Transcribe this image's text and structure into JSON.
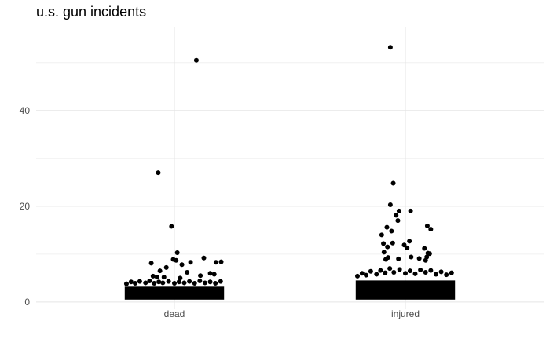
{
  "chart_data": {
    "type": "scatter",
    "title": "u.s. gun incidents",
    "xlabel": "",
    "ylabel": "",
    "categories": [
      "dead",
      "injured"
    ],
    "ylim": [
      -1.5,
      57.5
    ],
    "y_ticks": [
      0,
      20,
      40
    ],
    "y_tick_labels": [
      "0",
      "20",
      "40"
    ],
    "grid": true,
    "point_color": "#000000",
    "note": "",
    "points": {
      "dead": [
        {
          "x": -0.28,
          "y": 27
        },
        {
          "x": 0.38,
          "y": 50.5
        },
        {
          "x": -0.05,
          "y": 15.8
        },
        {
          "x": -0.02,
          "y": 8.9
        },
        {
          "x": 0.03,
          "y": 8.7
        },
        {
          "x": 0.05,
          "y": 10.3
        },
        {
          "x": 0.13,
          "y": 7.8
        },
        {
          "x": -0.14,
          "y": 7.2
        },
        {
          "x": -0.4,
          "y": 8.1
        },
        {
          "x": -0.25,
          "y": 6.5
        },
        {
          "x": 0.28,
          "y": 8.3
        },
        {
          "x": 0.51,
          "y": 9.2
        },
        {
          "x": 0.72,
          "y": 8.3
        },
        {
          "x": 0.81,
          "y": 8.4
        },
        {
          "x": -0.37,
          "y": 5.4
        },
        {
          "x": -0.3,
          "y": 5.2
        },
        {
          "x": -0.18,
          "y": 5.2
        },
        {
          "x": 0.62,
          "y": 6.0
        },
        {
          "x": 0.69,
          "y": 5.8
        },
        {
          "x": 0.45,
          "y": 5.5
        },
        {
          "x": 0.22,
          "y": 6.2
        },
        {
          "x": 0.1,
          "y": 5.0
        }
      ],
      "injured": [
        {
          "x": -0.26,
          "y": 53.2
        },
        {
          "x": -0.21,
          "y": 24.8
        },
        {
          "x": -0.26,
          "y": 20.3
        },
        {
          "x": -0.16,
          "y": 18.1
        },
        {
          "x": -0.13,
          "y": 17.0
        },
        {
          "x": -0.11,
          "y": 19.0
        },
        {
          "x": 0.09,
          "y": 19.0
        },
        {
          "x": -0.41,
          "y": 14.0
        },
        {
          "x": -0.38,
          "y": 12.2
        },
        {
          "x": -0.32,
          "y": 15.6
        },
        {
          "x": -0.22,
          "y": 12.3
        },
        {
          "x": -0.24,
          "y": 14.8
        },
        {
          "x": -0.31,
          "y": 11.5
        },
        {
          "x": 0.38,
          "y": 15.9
        },
        {
          "x": 0.44,
          "y": 15.2
        },
        {
          "x": -0.02,
          "y": 11.9
        },
        {
          "x": 0.03,
          "y": 11.3
        },
        {
          "x": 0.33,
          "y": 11.2
        },
        {
          "x": 0.42,
          "y": 10.1
        },
        {
          "x": 0.07,
          "y": 12.7
        },
        {
          "x": -0.37,
          "y": 10.4
        },
        {
          "x": -0.34,
          "y": 8.9
        },
        {
          "x": -0.3,
          "y": 9.3
        },
        {
          "x": -0.12,
          "y": 9.0
        },
        {
          "x": 0.1,
          "y": 9.4
        },
        {
          "x": 0.24,
          "y": 9.1
        },
        {
          "x": 0.37,
          "y": 9.4
        },
        {
          "x": 0.35,
          "y": 8.7
        },
        {
          "x": 0.39,
          "y": 10.2
        }
      ]
    },
    "dense_band": {
      "dead": {
        "x_half_width": 0.86,
        "y_min": 0.5,
        "y_max": 3.2,
        "top_points": [
          {
            "x": -0.83,
            "y": 3.8
          },
          {
            "x": -0.75,
            "y": 4.2
          },
          {
            "x": -0.68,
            "y": 3.9
          },
          {
            "x": -0.6,
            "y": 4.3
          },
          {
            "x": -0.5,
            "y": 4.0
          },
          {
            "x": -0.43,
            "y": 4.4
          },
          {
            "x": -0.35,
            "y": 3.9
          },
          {
            "x": -0.27,
            "y": 4.2
          },
          {
            "x": -0.2,
            "y": 4.0
          },
          {
            "x": -0.1,
            "y": 4.3
          },
          {
            "x": 0.0,
            "y": 3.9
          },
          {
            "x": 0.08,
            "y": 4.2
          },
          {
            "x": 0.17,
            "y": 4.0
          },
          {
            "x": 0.26,
            "y": 4.3
          },
          {
            "x": 0.35,
            "y": 3.9
          },
          {
            "x": 0.44,
            "y": 4.4
          },
          {
            "x": 0.53,
            "y": 4.0
          },
          {
            "x": 0.62,
            "y": 4.2
          },
          {
            "x": 0.71,
            "y": 3.9
          },
          {
            "x": 0.8,
            "y": 4.3
          }
        ]
      },
      "injured": {
        "x_half_width": 0.86,
        "y_min": 0.5,
        "y_max": 4.5,
        "top_points": [
          {
            "x": -0.83,
            "y": 5.4
          },
          {
            "x": -0.75,
            "y": 6.0
          },
          {
            "x": -0.68,
            "y": 5.6
          },
          {
            "x": -0.6,
            "y": 6.4
          },
          {
            "x": -0.5,
            "y": 5.8
          },
          {
            "x": -0.43,
            "y": 6.6
          },
          {
            "x": -0.35,
            "y": 6.1
          },
          {
            "x": -0.27,
            "y": 7.0
          },
          {
            "x": -0.2,
            "y": 6.2
          },
          {
            "x": -0.1,
            "y": 6.8
          },
          {
            "x": 0.0,
            "y": 6.0
          },
          {
            "x": 0.08,
            "y": 6.5
          },
          {
            "x": 0.17,
            "y": 5.9
          },
          {
            "x": 0.26,
            "y": 6.7
          },
          {
            "x": 0.35,
            "y": 6.2
          },
          {
            "x": 0.44,
            "y": 6.6
          },
          {
            "x": 0.53,
            "y": 5.8
          },
          {
            "x": 0.62,
            "y": 6.3
          },
          {
            "x": 0.71,
            "y": 5.7
          },
          {
            "x": 0.8,
            "y": 6.1
          }
        ]
      }
    }
  }
}
